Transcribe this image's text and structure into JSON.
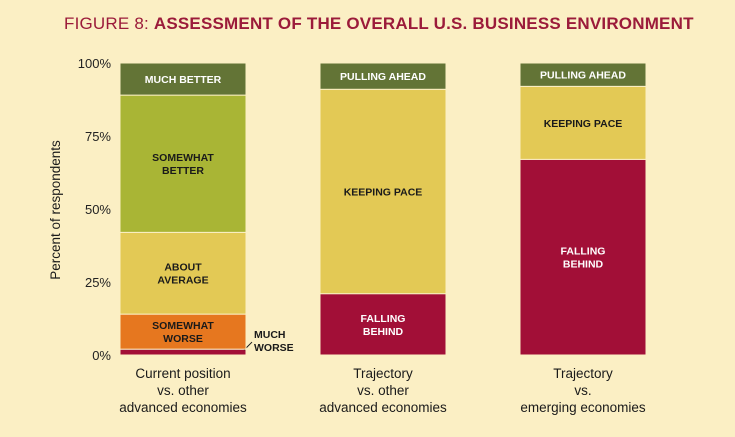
{
  "figure": {
    "title_prefix": "FIGURE 8:",
    "title_main": "ASSESSMENT OF THE OVERALL U.S. BUSINESS ENVIRONMENT"
  },
  "colors": {
    "background": "#fbefc4",
    "title": "#9b1b3a",
    "dark_olive": "#637436",
    "light_green": "#a9b535",
    "yellow": "#e3c955",
    "orange": "#e6771f",
    "crimson": "#a20f37"
  },
  "chart_data": {
    "type": "bar",
    "stacked": true,
    "ylabel": "Percent of respondents",
    "ylim": [
      0,
      100
    ],
    "yticks": [
      "0%",
      "25%",
      "50%",
      "75%",
      "100%"
    ],
    "categories": [
      [
        "Current position",
        "vs. other",
        "advanced economies"
      ],
      [
        "Trajectory",
        "vs. other",
        "advanced economies"
      ],
      [
        "Trajectory",
        "vs.",
        "emerging economies"
      ]
    ],
    "bars": [
      {
        "segments": [
          {
            "label": "MUCH WORSE",
            "value": 2,
            "color": "#a20f37",
            "label_outside": true
          },
          {
            "label": "SOMEWHAT WORSE",
            "value": 12,
            "color": "#e6771f"
          },
          {
            "label": "ABOUT AVERAGE",
            "value": 28,
            "color": "#e3c955"
          },
          {
            "label": "SOMEWHAT BETTER",
            "value": 47,
            "color": "#a9b535"
          },
          {
            "label": "MUCH BETTER",
            "value": 11,
            "color": "#637436"
          }
        ]
      },
      {
        "segments": [
          {
            "label": "FALLING BEHIND",
            "value": 21,
            "color": "#a20f37"
          },
          {
            "label": "KEEPING PACE",
            "value": 70,
            "color": "#e3c955"
          },
          {
            "label": "PULLING AHEAD",
            "value": 9,
            "color": "#637436"
          }
        ]
      },
      {
        "segments": [
          {
            "label": "FALLING BEHIND",
            "value": 67,
            "color": "#a20f37"
          },
          {
            "label": "KEEPING PACE",
            "value": 25,
            "color": "#e3c955"
          },
          {
            "label": "PULLING AHEAD",
            "value": 8,
            "color": "#637436"
          }
        ]
      }
    ]
  }
}
